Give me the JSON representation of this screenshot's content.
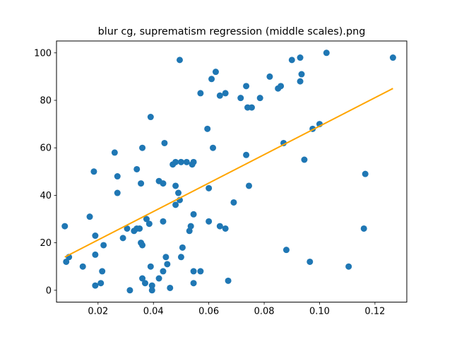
{
  "chart_data": {
    "type": "scatter",
    "title": "blur cg, suprematism regression (middle scales).png",
    "xlabel": "",
    "ylabel": "",
    "xlim": [
      0.005,
      0.1315
    ],
    "ylim": [
      -5,
      105
    ],
    "xticks": [
      "0.02",
      "0.04",
      "0.06",
      "0.08",
      "0.10",
      "0.12"
    ],
    "yticks": [
      "0",
      "20",
      "40",
      "60",
      "80",
      "100"
    ],
    "grid": false,
    "colors": {
      "points": "#1f77b4",
      "fit": "#ffa500"
    },
    "points": [
      [
        0.008,
        27
      ],
      [
        0.0085,
        12
      ],
      [
        0.0095,
        14
      ],
      [
        0.0145,
        10
      ],
      [
        0.017,
        31
      ],
      [
        0.0185,
        50
      ],
      [
        0.019,
        23
      ],
      [
        0.019,
        15
      ],
      [
        0.019,
        2
      ],
      [
        0.021,
        3
      ],
      [
        0.0215,
        8
      ],
      [
        0.022,
        19
      ],
      [
        0.026,
        58
      ],
      [
        0.027,
        48
      ],
      [
        0.027,
        41
      ],
      [
        0.029,
        22
      ],
      [
        0.0305,
        26
      ],
      [
        0.0315,
        0
      ],
      [
        0.033,
        25
      ],
      [
        0.034,
        26
      ],
      [
        0.034,
        51
      ],
      [
        0.035,
        26
      ],
      [
        0.0355,
        45
      ],
      [
        0.0355,
        20
      ],
      [
        0.036,
        19
      ],
      [
        0.036,
        60
      ],
      [
        0.036,
        5
      ],
      [
        0.037,
        3
      ],
      [
        0.0375,
        30
      ],
      [
        0.0385,
        28
      ],
      [
        0.039,
        73
      ],
      [
        0.039,
        10
      ],
      [
        0.0395,
        2
      ],
      [
        0.0395,
        0
      ],
      [
        0.042,
        46
      ],
      [
        0.042,
        5
      ],
      [
        0.0435,
        45
      ],
      [
        0.0435,
        29
      ],
      [
        0.0435,
        8
      ],
      [
        0.044,
        62
      ],
      [
        0.0445,
        14
      ],
      [
        0.045,
        11
      ],
      [
        0.046,
        1
      ],
      [
        0.047,
        53
      ],
      [
        0.048,
        54
      ],
      [
        0.048,
        36
      ],
      [
        0.048,
        44
      ],
      [
        0.049,
        41
      ],
      [
        0.0495,
        38
      ],
      [
        0.0495,
        97
      ],
      [
        0.05,
        54
      ],
      [
        0.05,
        14
      ],
      [
        0.0505,
        18
      ],
      [
        0.052,
        54
      ],
      [
        0.053,
        25
      ],
      [
        0.0535,
        27
      ],
      [
        0.054,
        53
      ],
      [
        0.0545,
        54
      ],
      [
        0.0545,
        32
      ],
      [
        0.0545,
        8
      ],
      [
        0.0545,
        3
      ],
      [
        0.057,
        8
      ],
      [
        0.057,
        83
      ],
      [
        0.0595,
        68
      ],
      [
        0.06,
        43
      ],
      [
        0.06,
        29
      ],
      [
        0.061,
        89
      ],
      [
        0.0615,
        60
      ],
      [
        0.0625,
        92
      ],
      [
        0.064,
        82
      ],
      [
        0.064,
        27
      ],
      [
        0.066,
        26
      ],
      [
        0.066,
        83
      ],
      [
        0.067,
        4
      ],
      [
        0.069,
        37
      ],
      [
        0.0715,
        81
      ],
      [
        0.0735,
        57
      ],
      [
        0.0735,
        86
      ],
      [
        0.074,
        77
      ],
      [
        0.0745,
        44
      ],
      [
        0.0755,
        77
      ],
      [
        0.0785,
        81
      ],
      [
        0.082,
        90
      ],
      [
        0.085,
        85
      ],
      [
        0.086,
        86
      ],
      [
        0.087,
        62
      ],
      [
        0.088,
        17
      ],
      [
        0.09,
        97
      ],
      [
        0.093,
        98
      ],
      [
        0.093,
        88
      ],
      [
        0.0935,
        91
      ],
      [
        0.0945,
        55
      ],
      [
        0.0965,
        12
      ],
      [
        0.0975,
        68
      ],
      [
        0.1,
        70
      ],
      [
        0.1025,
        100
      ],
      [
        0.1105,
        10
      ],
      [
        0.116,
        26
      ],
      [
        0.1165,
        49
      ],
      [
        0.1265,
        98
      ]
    ],
    "fit_line": [
      [
        0.008,
        14
      ],
      [
        0.1265,
        85
      ]
    ]
  }
}
